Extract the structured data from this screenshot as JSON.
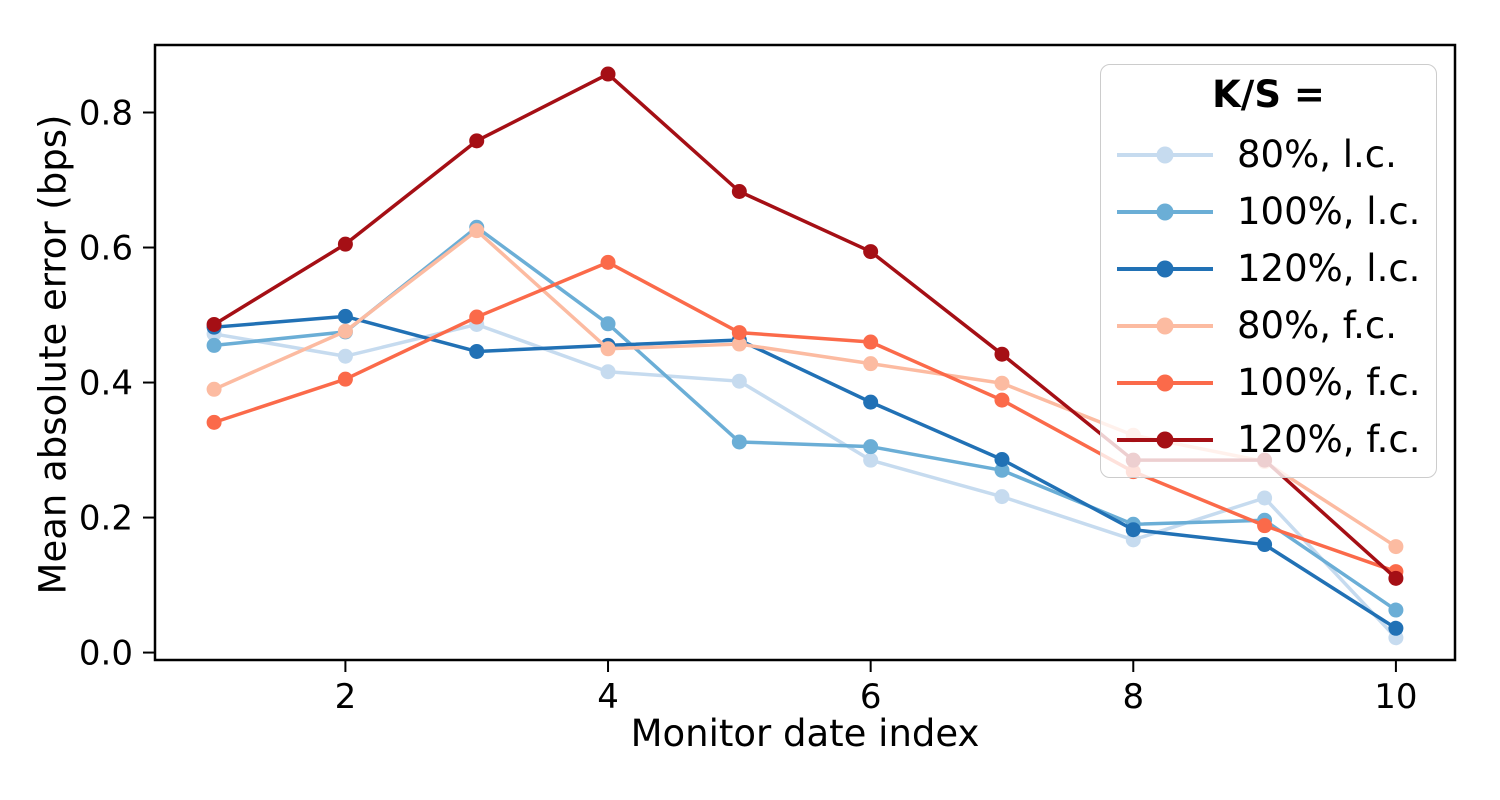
{
  "chart_data": {
    "type": "line",
    "title": "",
    "xlabel": "Monitor date index",
    "ylabel": "Mean absolute error (bps)",
    "x": [
      1,
      2,
      3,
      4,
      5,
      6,
      7,
      8,
      9,
      10
    ],
    "xlim": [
      0.55,
      10.45
    ],
    "ylim": [
      -0.011,
      0.9
    ],
    "xticks": [
      2,
      4,
      6,
      8,
      10
    ],
    "yticks": [
      0.0,
      0.2,
      0.4,
      0.6,
      0.8
    ],
    "grid": false,
    "legend_position": "upper right",
    "legend_title": "K/S =",
    "series": [
      {
        "name": "80%, l.c.",
        "color": "#c6dbef",
        "values": [
          0.472,
          0.439,
          0.486,
          0.416,
          0.402,
          0.285,
          0.231,
          0.167,
          0.229,
          0.022
        ]
      },
      {
        "name": "100%, l.c.",
        "color": "#6baed6",
        "values": [
          0.455,
          0.475,
          0.63,
          0.487,
          0.312,
          0.305,
          0.27,
          0.19,
          0.196,
          0.063
        ]
      },
      {
        "name": "120%, l.c.",
        "color": "#2171b5",
        "values": [
          0.482,
          0.498,
          0.446,
          0.455,
          0.463,
          0.371,
          0.286,
          0.182,
          0.16,
          0.036
        ]
      },
      {
        "name": "80%, f.c.",
        "color": "#fcbba1",
        "values": [
          0.39,
          0.476,
          0.625,
          0.45,
          0.457,
          0.428,
          0.399,
          0.322,
          0.283,
          0.157
        ]
      },
      {
        "name": "100%, f.c.",
        "color": "#fb6a4a",
        "values": [
          0.341,
          0.405,
          0.497,
          0.578,
          0.474,
          0.46,
          0.374,
          0.268,
          0.188,
          0.12
        ]
      },
      {
        "name": "120%, f.c.",
        "color": "#a50f15",
        "values": [
          0.486,
          0.605,
          0.758,
          0.857,
          0.683,
          0.594,
          0.442,
          0.285,
          0.285,
          0.11
        ]
      }
    ],
    "axis_color": "#000000",
    "tick_label_color": "#000000"
  }
}
